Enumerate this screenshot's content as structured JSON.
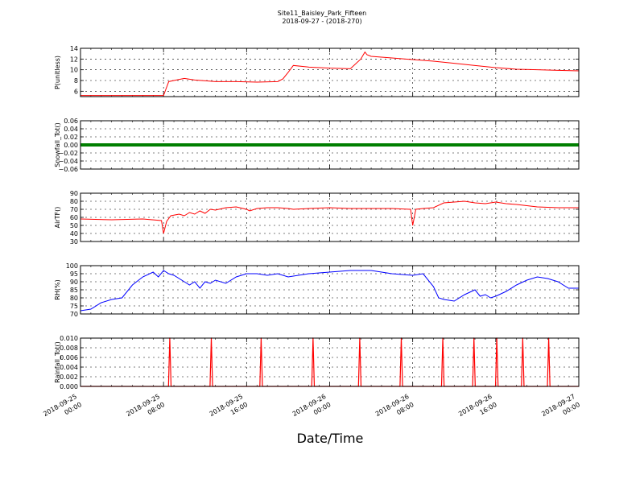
{
  "title": "Site11_Baisley_Park_Fifteen",
  "subtitle": "2018-09-27 - (2018-270)",
  "xlabel": "Date/Time",
  "chart_data": {
    "type": "line",
    "shared_x_ticks": [
      {
        "line1": "2018-09-25",
        "line2": "00:00"
      },
      {
        "line1": "2018-09-25",
        "line2": "08:00"
      },
      {
        "line1": "2018-09-25",
        "line2": "16:00"
      },
      {
        "line1": "2018-09-26",
        "line2": "00:00"
      },
      {
        "line1": "2018-09-26",
        "line2": "08:00"
      },
      {
        "line1": "2018-09-26",
        "line2": "16:00"
      },
      {
        "line1": "2018-09-27",
        "line2": "00:00"
      }
    ],
    "x_range_hours": [
      0,
      48
    ],
    "panels": [
      {
        "ylabel": "P(unitless)",
        "ylim": [
          5,
          14
        ],
        "yticks": [
          "6",
          "8",
          "10",
          "12",
          "14"
        ],
        "ytick_values": [
          6,
          8,
          10,
          12,
          14
        ],
        "color": "#ff0000",
        "x": [
          0,
          3,
          6,
          8,
          8.5,
          9,
          10,
          11,
          13,
          15,
          17,
          19,
          19.5,
          20,
          20.5,
          22,
          24,
          26,
          27,
          27.4,
          27.6,
          28,
          30,
          32,
          34,
          36,
          38,
          40,
          42,
          44,
          46,
          48
        ],
        "y": [
          5.2,
          5.2,
          5.2,
          5.2,
          7.8,
          8.0,
          8.4,
          8.1,
          7.8,
          7.8,
          7.7,
          7.8,
          8.3,
          9.5,
          10.8,
          10.5,
          10.3,
          10.2,
          12.0,
          13.3,
          12.8,
          12.5,
          12.2,
          11.9,
          11.6,
          11.2,
          10.8,
          10.4,
          10.1,
          10.0,
          9.9,
          9.8
        ]
      },
      {
        "ylabel": "Snowfall_Tot()",
        "ylim": [
          -0.06,
          0.06
        ],
        "yticks": [
          "0.06",
          "0.04",
          "0.02",
          "0.00",
          "−0.02",
          "−0.04",
          "−0.06"
        ],
        "ytick_values": [
          0.06,
          0.04,
          0.02,
          0.0,
          -0.02,
          -0.04,
          -0.06
        ],
        "color": "#007f00",
        "x": [
          0,
          48
        ],
        "y": [
          0,
          0
        ]
      },
      {
        "ylabel": "AirTF()",
        "ylim": [
          30,
          90
        ],
        "yticks": [
          "90",
          "80",
          "70",
          "60",
          "50",
          "40",
          "30"
        ],
        "ytick_values": [
          90,
          80,
          70,
          60,
          50,
          40,
          30
        ],
        "color": "#ff0000",
        "x": [
          0,
          3,
          6,
          7.8,
          8,
          8.3,
          8.7,
          9.5,
          10,
          10.5,
          11,
          11.5,
          12,
          12.5,
          13,
          14,
          15,
          16,
          16.3,
          17,
          18,
          19,
          20,
          20.5,
          22,
          24,
          26,
          28,
          30,
          31.8,
          32,
          32.3,
          33,
          34,
          35,
          36,
          37,
          38,
          39,
          40,
          41,
          42,
          44,
          46,
          48
        ],
        "y": [
          58,
          57,
          58,
          56,
          40,
          55,
          62,
          64,
          62,
          66,
          64,
          68,
          65,
          70,
          69,
          72,
          73,
          70,
          68,
          71,
          72,
          72,
          71,
          70,
          71,
          72,
          71,
          71,
          71,
          70,
          50,
          70,
          71,
          72,
          78,
          79,
          80,
          78,
          77,
          79,
          77,
          76,
          73,
          72,
          72
        ]
      },
      {
        "ylabel": "RH(%)",
        "ylim": [
          70,
          100
        ],
        "yticks": [
          "100",
          "95",
          "90",
          "85",
          "80",
          "75",
          "70"
        ],
        "ytick_values": [
          100,
          95,
          90,
          85,
          80,
          75,
          70
        ],
        "color": "#0000ff",
        "x": [
          0,
          1,
          2,
          3,
          4,
          5,
          6,
          7,
          7.5,
          8,
          8.5,
          9,
          10,
          10.5,
          11,
          11.5,
          12,
          12.5,
          13,
          14,
          15,
          16,
          17,
          18,
          19,
          20,
          22,
          24,
          26,
          28,
          30,
          32,
          33,
          34,
          34.5,
          35,
          36,
          37,
          38,
          38.5,
          39,
          39.5,
          40,
          41,
          42,
          43,
          44,
          45,
          46,
          47,
          48
        ],
        "y": [
          72,
          73,
          77,
          79,
          80,
          88,
          93,
          96,
          93,
          97,
          95,
          94,
          90,
          88,
          90,
          86,
          90,
          89,
          91,
          89,
          93,
          95,
          95,
          94,
          95,
          93,
          95,
          96,
          97,
          97,
          95,
          94,
          95,
          87,
          80,
          79,
          78,
          82,
          85,
          81,
          82,
          80,
          81,
          84,
          88,
          91,
          93,
          92,
          90,
          86,
          86
        ]
      },
      {
        "ylabel": "Rainfall_Tot()",
        "ylim": [
          0,
          0.01
        ],
        "yticks": [
          "0.010",
          "0.008",
          "0.006",
          "0.004",
          "0.002",
          "0.000"
        ],
        "ytick_values": [
          0.01,
          0.008,
          0.006,
          0.004,
          0.002,
          0.0
        ],
        "color": "#ff0000",
        "spike_hours": [
          8.6,
          12.6,
          17.4,
          22.4,
          26.9,
          30.9,
          34.9,
          37.9,
          40.1,
          42.6,
          45.1
        ],
        "spike_value": 0.01
      }
    ]
  }
}
